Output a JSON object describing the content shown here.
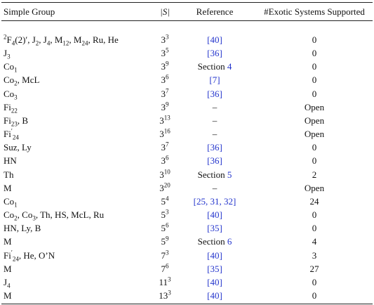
{
  "table": {
    "header": [
      "Simple Group",
      "|S|",
      "Reference",
      "#Exotic Systems Supported"
    ],
    "rows": [
      [
        [
          {
            "sup": "2"
          },
          "F",
          {
            "sub": "4"
          },
          "(2)′, J",
          {
            "sub": "2"
          },
          ", J",
          {
            "sub": "4"
          },
          ", M",
          {
            "sub": "12"
          },
          ", M",
          {
            "sub": "24"
          },
          ", Ru, He"
        ],
        [
          "3",
          {
            "sup": "3"
          }
        ],
        [
          {
            "link": "[40]"
          }
        ],
        0
      ],
      [
        [
          "J",
          {
            "sub": "3"
          }
        ],
        [
          "3",
          {
            "sup": "5"
          }
        ],
        [
          {
            "link": "[36]"
          }
        ],
        0
      ],
      [
        [
          "Co",
          {
            "sub": "1"
          }
        ],
        [
          "3",
          {
            "sup": "9"
          }
        ],
        [
          "Section ",
          {
            "link": "4"
          }
        ],
        0
      ],
      [
        [
          "Co",
          {
            "sub": "2"
          },
          ", McL"
        ],
        [
          "3",
          {
            "sup": "6"
          }
        ],
        [
          {
            "link": "[7]"
          }
        ],
        0
      ],
      [
        [
          "Co",
          {
            "sub": "3"
          }
        ],
        [
          "3",
          {
            "sup": "7"
          }
        ],
        [
          {
            "link": "[36]"
          }
        ],
        0
      ],
      [
        [
          "Fi",
          {
            "sub": "22"
          }
        ],
        [
          "3",
          {
            "sup": "9"
          }
        ],
        [
          "–"
        ],
        "Open"
      ],
      [
        [
          "Fi",
          {
            "sub": "23"
          },
          ", B"
        ],
        [
          "3",
          {
            "sup": "13"
          }
        ],
        [
          "–"
        ],
        "Open"
      ],
      [
        [
          "Fi",
          {
            "sup": "′"
          },
          {
            "sub": "24"
          }
        ],
        [
          "3",
          {
            "sup": "16"
          }
        ],
        [
          "–"
        ],
        "Open"
      ],
      [
        [
          "Suz, Ly"
        ],
        [
          "3",
          {
            "sup": "7"
          }
        ],
        [
          {
            "link": "[36]"
          }
        ],
        0
      ],
      [
        [
          "HN"
        ],
        [
          "3",
          {
            "sup": "6"
          }
        ],
        [
          {
            "link": "[36]"
          }
        ],
        0
      ],
      [
        [
          "Th"
        ],
        [
          "3",
          {
            "sup": "10"
          }
        ],
        [
          "Section ",
          {
            "link": "5"
          }
        ],
        2
      ],
      [
        [
          "M"
        ],
        [
          "3",
          {
            "sup": "20"
          }
        ],
        [
          "–"
        ],
        "Open"
      ],
      [
        [
          "Co",
          {
            "sub": "1"
          }
        ],
        [
          "5",
          {
            "sup": "4"
          }
        ],
        [
          {
            "link": "[25, 31, 32]"
          }
        ],
        24
      ],
      [
        [
          "Co",
          {
            "sub": "2"
          },
          ", Co",
          {
            "sub": "3"
          },
          ", Th, HS, McL, Ru"
        ],
        [
          "5",
          {
            "sup": "3"
          }
        ],
        [
          {
            "link": "[40]"
          }
        ],
        0
      ],
      [
        [
          "HN, Ly, B"
        ],
        [
          "5",
          {
            "sup": "6"
          }
        ],
        [
          {
            "link": "[35]"
          }
        ],
        0
      ],
      [
        [
          "M"
        ],
        [
          "5",
          {
            "sup": "9"
          }
        ],
        [
          "Section ",
          {
            "link": "6"
          }
        ],
        4
      ],
      [
        [
          "Fi",
          {
            "sup": "′"
          },
          {
            "sub": "24"
          },
          ", He, O’N"
        ],
        [
          "7",
          {
            "sup": "3"
          }
        ],
        [
          {
            "link": "[40]"
          }
        ],
        3
      ],
      [
        [
          "M"
        ],
        [
          "7",
          {
            "sup": "6"
          }
        ],
        [
          {
            "link": "[35]"
          }
        ],
        27
      ],
      [
        [
          "J",
          {
            "sub": "4"
          }
        ],
        [
          "11",
          {
            "sup": "3"
          }
        ],
        [
          {
            "link": "[40]"
          }
        ],
        0
      ],
      [
        [
          "M"
        ],
        [
          "13",
          {
            "sup": "3"
          }
        ],
        [
          {
            "link": "[40]"
          }
        ],
        0
      ]
    ]
  }
}
